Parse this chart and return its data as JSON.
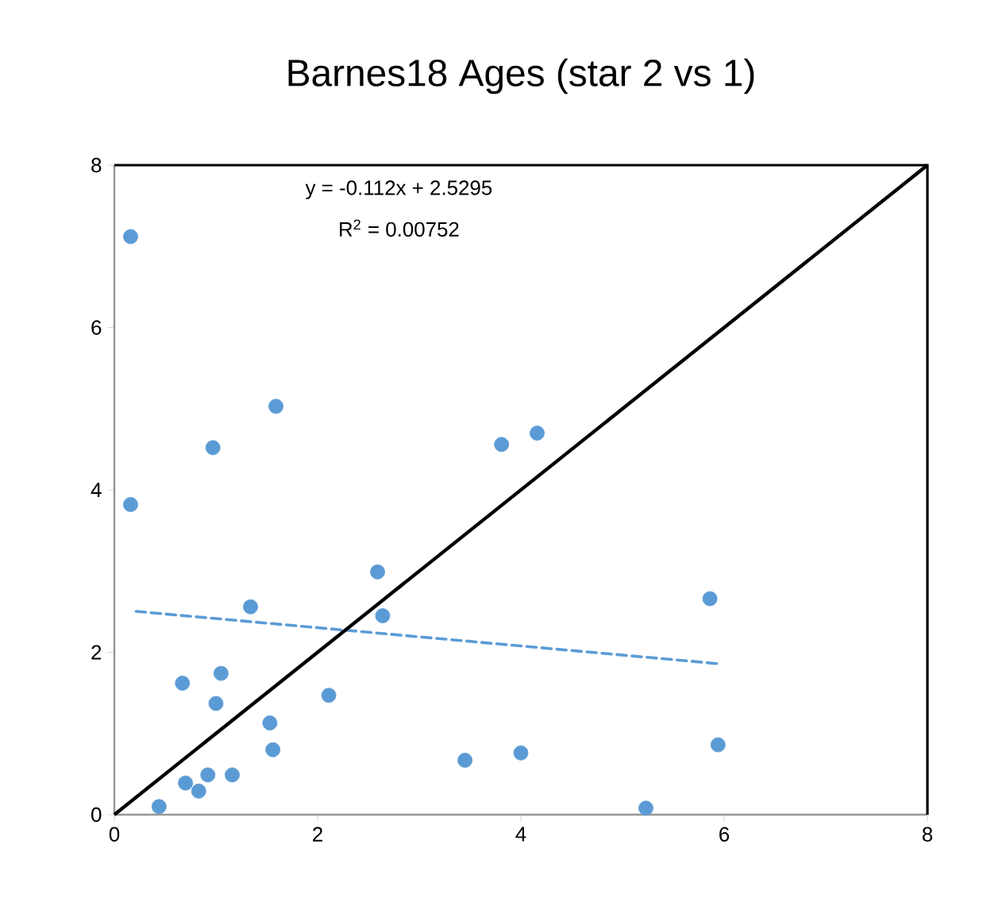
{
  "chart_data": {
    "type": "scatter",
    "title": "Barnes18 Ages (star 2 vs 1)",
    "xlim": [
      0,
      8
    ],
    "ylim": [
      0,
      8
    ],
    "xticks": [
      0,
      2,
      4,
      6,
      8
    ],
    "yticks": [
      0,
      2,
      4,
      6,
      8
    ],
    "grid": false,
    "annotations": [
      {
        "text": "y = -0.112x + 2.5295"
      },
      {
        "text": "R$^{2}$ = 0.00752"
      }
    ],
    "series": [
      {
        "color": "#5b9bd5",
        "marker": "circle",
        "x": [
          0.16,
          0.16,
          0.44,
          0.67,
          0.7,
          0.83,
          0.92,
          1.16,
          0.97,
          1.0,
          1.05,
          1.34,
          1.59,
          1.53,
          1.56,
          2.11,
          2.59,
          2.64,
          3.45,
          3.81,
          4.16,
          4.0,
          5.23,
          5.86,
          5.94
        ],
        "values": [
          7.12,
          3.82,
          0.1,
          1.62,
          0.39,
          0.29,
          0.49,
          0.49,
          4.52,
          1.37,
          1.74,
          2.56,
          5.03,
          1.13,
          0.8,
          1.47,
          2.99,
          2.45,
          0.67,
          4.56,
          4.7,
          0.76,
          0.08,
          2.66,
          0.86
        ]
      },
      {
        "type": "line",
        "color": "#5b9bd5",
        "line_style": "dashed",
        "marker": "none",
        "x": [
          0.16,
          5.94
        ],
        "values": [
          2.51,
          1.86
        ]
      },
      {
        "type": "line",
        "color": "#000000",
        "line_style": "solid",
        "marker": "none",
        "x": [
          0,
          8
        ],
        "values": [
          0,
          8
        ]
      }
    ]
  }
}
